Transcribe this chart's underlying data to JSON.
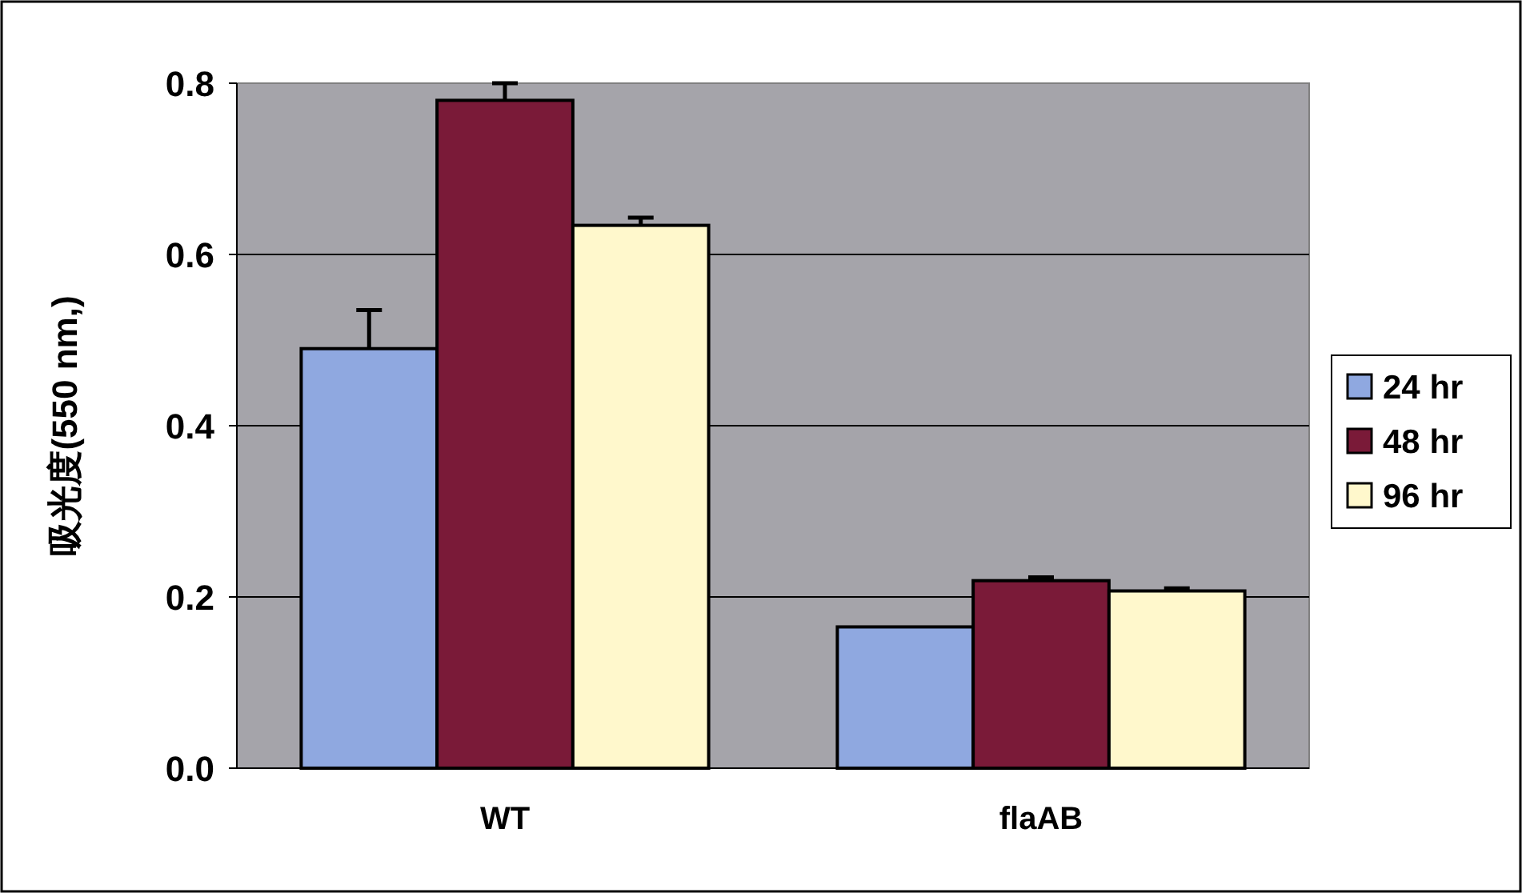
{
  "chart_data": {
    "type": "bar",
    "ylabel": "吸光度(550 nm,)",
    "categories": [
      "WT",
      "flaAB"
    ],
    "series": [
      {
        "name": "24 hr",
        "color": "#8fa8e0",
        "values": [
          0.49,
          0.165
        ],
        "errors": [
          [
            0.49,
            0.535
          ],
          null
        ]
      },
      {
        "name": "48 hr",
        "color": "#7a1a38",
        "values": [
          0.78,
          0.219
        ],
        "errors": [
          [
            0.78,
            0.8
          ],
          [
            0.219,
            0.223
          ]
        ]
      },
      {
        "name": "96 hr",
        "color": "#fff8cc",
        "values": [
          0.634,
          0.207
        ],
        "errors": [
          [
            0.634,
            0.643
          ],
          [
            0.207,
            0.21
          ]
        ]
      }
    ],
    "ylim": [
      0,
      0.8
    ],
    "yticks": [
      {
        "value": 0,
        "label": "0.0"
      },
      0.2,
      0.4,
      0.6,
      0.8
    ],
    "grid": "y",
    "legend": "right"
  }
}
